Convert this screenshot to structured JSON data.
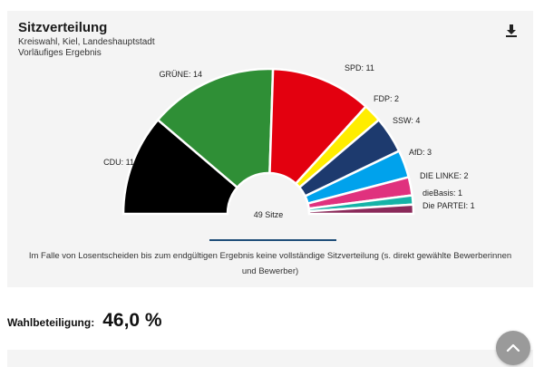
{
  "header": {
    "title": "Sitzverteilung",
    "subtitle_line1": "Kreiswahl, Kiel, Landeshauptstadt",
    "subtitle_line2": "Vorläufiges Ergebnis"
  },
  "icons": {
    "download": "download-icon",
    "scroll_top": "chevron-up-icon"
  },
  "chart_data": {
    "type": "pie",
    "variant": "parliament-semicircle",
    "title": "Sitzverteilung",
    "center_label": "49 Sitze",
    "total": 49,
    "series": [
      {
        "name": "CDU",
        "label": "CDU: 11",
        "value": 11,
        "color": "#000000"
      },
      {
        "name": "GRÜNE",
        "label": "GRÜNE: 14",
        "value": 14,
        "color": "#2f8f36"
      },
      {
        "name": "SPD",
        "label": "SPD: 11",
        "value": 11,
        "color": "#e3000f"
      },
      {
        "name": "FDP",
        "label": "FDP: 2",
        "value": 2,
        "color": "#ffed00"
      },
      {
        "name": "SSW",
        "label": "SSW: 4",
        "value": 4,
        "color": "#1d3a6e"
      },
      {
        "name": "AfD",
        "label": "AfD: 3",
        "value": 3,
        "color": "#00a2ec"
      },
      {
        "name": "DIE LINKE",
        "label": "DIE LINKE: 2",
        "value": 2,
        "color": "#e0317e"
      },
      {
        "name": "dieBasis",
        "label": "dieBasis: 1",
        "value": 1,
        "color": "#16b3a7"
      },
      {
        "name": "Die PARTEI",
        "label": "Die PARTEI: 1",
        "value": 1,
        "color": "#8b2a5a"
      }
    ]
  },
  "note": "Im Falle von Losentscheiden bis zum endgültigen Ergebnis keine vollständige Sitzverteilung (s. direkt gewählte Bewerberinnen und Bewerber)",
  "turnout": {
    "label": "Wahlbeteiligung:",
    "value": "46,0 %"
  }
}
